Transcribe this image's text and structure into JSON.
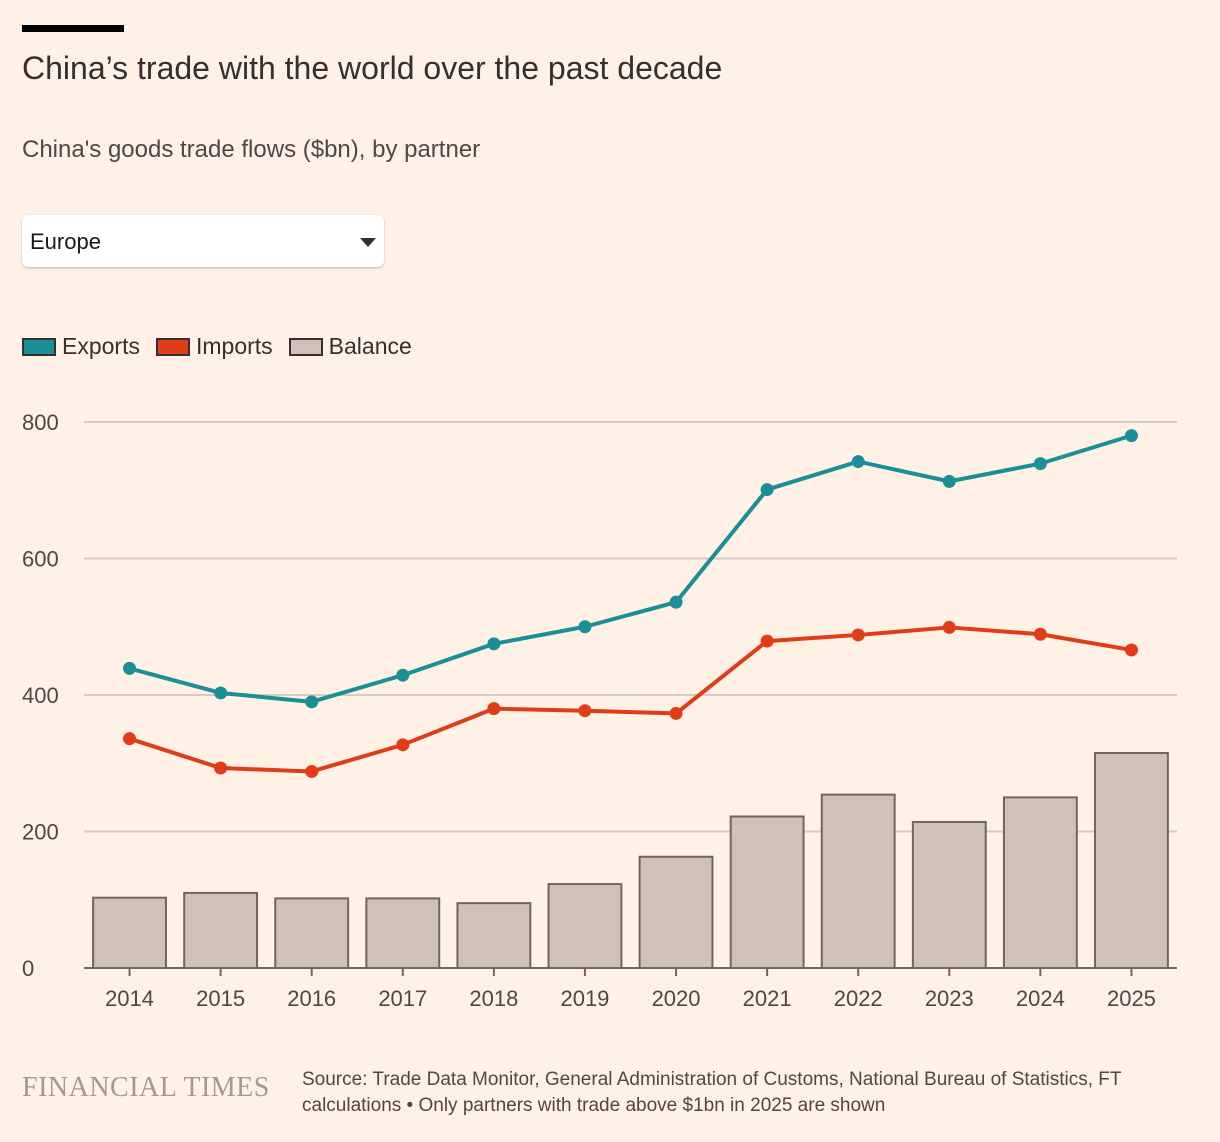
{
  "header": {
    "title": "China’s trade with the world over the past decade",
    "subtitle": "China's goods trade flows ($bn), by partner"
  },
  "filter": {
    "selected": "Europe"
  },
  "legend": [
    {
      "label": "Exports",
      "color": "#1a8f98"
    },
    {
      "label": "Imports",
      "color": "#e03c18"
    },
    {
      "label": "Balance",
      "color": "#cdc1b8"
    }
  ],
  "footer": {
    "logo": "FINANCIAL TIMES",
    "source": "Source: Trade Data Monitor, General Administration of Customs, National Bureau of Statistics, FT calculations • Only partners with trade above $1bn in 2025 are shown"
  },
  "chart_data": {
    "type": "bar",
    "title": "China’s trade with the world over the past decade",
    "subtitle": "China's goods trade flows ($bn), by partner",
    "xlabel": "",
    "ylabel": "",
    "ylim": [
      0,
      800
    ],
    "yticks": [
      0,
      200,
      400,
      600,
      800
    ],
    "grid": true,
    "legend_position": "top-left",
    "categories": [
      "2014",
      "2015",
      "2016",
      "2017",
      "2018",
      "2019",
      "2020",
      "2021",
      "2022",
      "2023",
      "2024",
      "2025"
    ],
    "series": [
      {
        "name": "Balance",
        "type": "bar",
        "color": "#cdc1b8",
        "values": [
          103,
          110,
          102,
          102,
          95,
          123,
          163,
          222,
          254,
          214,
          250,
          315
        ]
      },
      {
        "name": "Exports",
        "type": "line",
        "color": "#1a8f98",
        "values": [
          439,
          403,
          390,
          429,
          475,
          500,
          536,
          701,
          742,
          713,
          739,
          780
        ]
      },
      {
        "name": "Imports",
        "type": "line",
        "color": "#e03c18",
        "values": [
          336,
          293,
          288,
          327,
          380,
          377,
          373,
          479,
          488,
          499,
          489,
          466
        ]
      }
    ]
  }
}
